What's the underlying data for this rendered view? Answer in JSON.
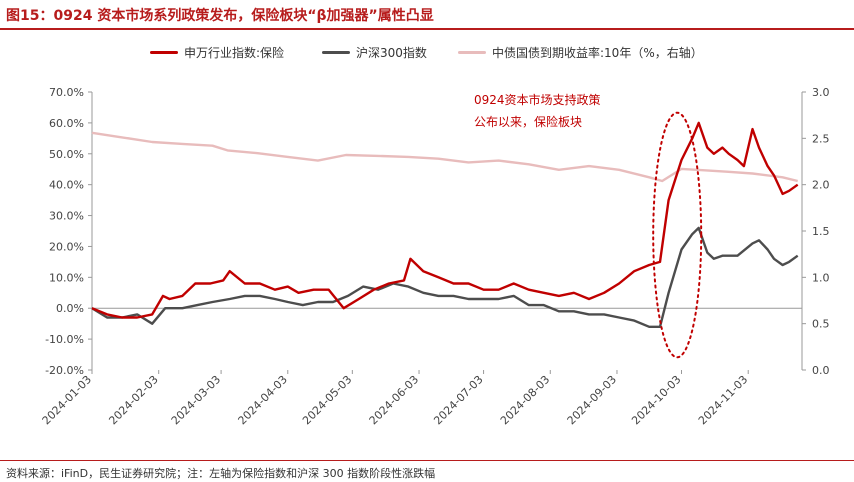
{
  "header": {
    "title": "图15：0924 资本市场系列政策发布，保险板块“β加强器”属性凸显"
  },
  "footer": {
    "source": "资料来源：iFinD，民生证券研究院；注：左轴为保险指数和沪深 300 指数阶段性涨跌幅"
  },
  "colors": {
    "insurance": "#c00000",
    "csi300": "#4d4d4d",
    "bond": "#e8bcbc",
    "accent": "#b71c1c"
  },
  "chart_data": {
    "type": "line",
    "title": "",
    "x_ticks": [
      "2024-01-03",
      "2024-02-03",
      "2024-03-03",
      "2024-04-03",
      "2024-05-03",
      "2024-06-03",
      "2024-07-03",
      "2024-08-03",
      "2024-09-03",
      "2024-10-03",
      "2024-11-03"
    ],
    "ylim_left": [
      -20,
      70
    ],
    "ylim_right": [
      0.0,
      3.0
    ],
    "y_left_ticks": [
      "-20.0%",
      "-10.0%",
      "0.0%",
      "10.0%",
      "20.0%",
      "30.0%",
      "40.0%",
      "50.0%",
      "60.0%",
      "70.0%"
    ],
    "y_right_ticks": [
      "0.0",
      "0.5",
      "1.0",
      "1.5",
      "2.0",
      "2.5",
      "3.0"
    ],
    "legend_position": "top",
    "grid": false,
    "series": [
      {
        "name": "申万行业指数:保险",
        "axis": "left",
        "points": [
          [
            "2024-01-03",
            0
          ],
          [
            "2024-01-10",
            -2
          ],
          [
            "2024-01-17",
            -3
          ],
          [
            "2024-01-24",
            -3
          ],
          [
            "2024-01-31",
            -2
          ],
          [
            "2024-02-05",
            4
          ],
          [
            "2024-02-08",
            3
          ],
          [
            "2024-02-14",
            4
          ],
          [
            "2024-02-20",
            8
          ],
          [
            "2024-02-27",
            8
          ],
          [
            "2024-03-04",
            9
          ],
          [
            "2024-03-07",
            12
          ],
          [
            "2024-03-14",
            8
          ],
          [
            "2024-03-21",
            8
          ],
          [
            "2024-03-28",
            6
          ],
          [
            "2024-04-03",
            7
          ],
          [
            "2024-04-08",
            5
          ],
          [
            "2024-04-15",
            6
          ],
          [
            "2024-04-22",
            6
          ],
          [
            "2024-04-29",
            0
          ],
          [
            "2024-05-06",
            3
          ],
          [
            "2024-05-13",
            6
          ],
          [
            "2024-05-20",
            8
          ],
          [
            "2024-05-27",
            9
          ],
          [
            "2024-05-30",
            16
          ],
          [
            "2024-06-05",
            12
          ],
          [
            "2024-06-12",
            10
          ],
          [
            "2024-06-19",
            8
          ],
          [
            "2024-06-26",
            8
          ],
          [
            "2024-07-03",
            6
          ],
          [
            "2024-07-10",
            6
          ],
          [
            "2024-07-17",
            8
          ],
          [
            "2024-07-24",
            6
          ],
          [
            "2024-07-31",
            5
          ],
          [
            "2024-08-07",
            4
          ],
          [
            "2024-08-14",
            5
          ],
          [
            "2024-08-21",
            3
          ],
          [
            "2024-08-28",
            5
          ],
          [
            "2024-09-04",
            8
          ],
          [
            "2024-09-11",
            12
          ],
          [
            "2024-09-18",
            14
          ],
          [
            "2024-09-23",
            15
          ],
          [
            "2024-09-27",
            35
          ],
          [
            "2024-10-03",
            48
          ],
          [
            "2024-10-08",
            55
          ],
          [
            "2024-10-11",
            60
          ],
          [
            "2024-10-15",
            52
          ],
          [
            "2024-10-18",
            50
          ],
          [
            "2024-10-22",
            52
          ],
          [
            "2024-10-25",
            50
          ],
          [
            "2024-10-29",
            48
          ],
          [
            "2024-11-01",
            46
          ],
          [
            "2024-11-05",
            58
          ],
          [
            "2024-11-08",
            52
          ],
          [
            "2024-11-12",
            46
          ],
          [
            "2024-11-15",
            43
          ],
          [
            "2024-11-19",
            37
          ],
          [
            "2024-11-22",
            38
          ],
          [
            "2024-11-26",
            40
          ]
        ]
      },
      {
        "name": "沪深300指数",
        "axis": "left",
        "points": [
          [
            "2024-01-03",
            0
          ],
          [
            "2024-01-10",
            -3
          ],
          [
            "2024-01-17",
            -3
          ],
          [
            "2024-01-24",
            -2
          ],
          [
            "2024-01-31",
            -5
          ],
          [
            "2024-02-06",
            0
          ],
          [
            "2024-02-14",
            0
          ],
          [
            "2024-02-21",
            1
          ],
          [
            "2024-02-28",
            2
          ],
          [
            "2024-03-07",
            3
          ],
          [
            "2024-03-14",
            4
          ],
          [
            "2024-03-21",
            4
          ],
          [
            "2024-03-28",
            3
          ],
          [
            "2024-04-03",
            2
          ],
          [
            "2024-04-10",
            1
          ],
          [
            "2024-04-17",
            2
          ],
          [
            "2024-04-24",
            2
          ],
          [
            "2024-05-01",
            4
          ],
          [
            "2024-05-08",
            7
          ],
          [
            "2024-05-15",
            6
          ],
          [
            "2024-05-22",
            8
          ],
          [
            "2024-05-29",
            7
          ],
          [
            "2024-06-05",
            5
          ],
          [
            "2024-06-12",
            4
          ],
          [
            "2024-06-19",
            4
          ],
          [
            "2024-06-26",
            3
          ],
          [
            "2024-07-03",
            3
          ],
          [
            "2024-07-10",
            3
          ],
          [
            "2024-07-17",
            4
          ],
          [
            "2024-07-24",
            1
          ],
          [
            "2024-07-31",
            1
          ],
          [
            "2024-08-07",
            -1
          ],
          [
            "2024-08-14",
            -1
          ],
          [
            "2024-08-21",
            -2
          ],
          [
            "2024-08-28",
            -2
          ],
          [
            "2024-09-04",
            -3
          ],
          [
            "2024-09-11",
            -4
          ],
          [
            "2024-09-18",
            -6
          ],
          [
            "2024-09-23",
            -6
          ],
          [
            "2024-09-27",
            5
          ],
          [
            "2024-10-03",
            19
          ],
          [
            "2024-10-08",
            24
          ],
          [
            "2024-10-11",
            26
          ],
          [
            "2024-10-15",
            18
          ],
          [
            "2024-10-18",
            16
          ],
          [
            "2024-10-22",
            17
          ],
          [
            "2024-10-29",
            17
          ],
          [
            "2024-11-05",
            21
          ],
          [
            "2024-11-08",
            22
          ],
          [
            "2024-11-12",
            19
          ],
          [
            "2024-11-15",
            16
          ],
          [
            "2024-11-19",
            14
          ],
          [
            "2024-11-22",
            15
          ],
          [
            "2024-11-26",
            17
          ]
        ]
      },
      {
        "name": "中债国债到期收益率:10年（%，右轴）",
        "axis": "right",
        "points": [
          [
            "2024-01-03",
            2.56
          ],
          [
            "2024-01-17",
            2.51
          ],
          [
            "2024-01-31",
            2.46
          ],
          [
            "2024-02-14",
            2.44
          ],
          [
            "2024-02-28",
            2.42
          ],
          [
            "2024-03-06",
            2.37
          ],
          [
            "2024-03-20",
            2.34
          ],
          [
            "2024-04-03",
            2.3
          ],
          [
            "2024-04-17",
            2.26
          ],
          [
            "2024-04-30",
            2.32
          ],
          [
            "2024-05-15",
            2.31
          ],
          [
            "2024-05-29",
            2.3
          ],
          [
            "2024-06-12",
            2.28
          ],
          [
            "2024-06-26",
            2.24
          ],
          [
            "2024-07-10",
            2.26
          ],
          [
            "2024-07-24",
            2.22
          ],
          [
            "2024-08-07",
            2.16
          ],
          [
            "2024-08-21",
            2.2
          ],
          [
            "2024-09-04",
            2.16
          ],
          [
            "2024-09-18",
            2.08
          ],
          [
            "2024-09-24",
            2.04
          ],
          [
            "2024-10-03",
            2.17
          ],
          [
            "2024-10-10",
            2.16
          ],
          [
            "2024-10-24",
            2.14
          ],
          [
            "2024-11-05",
            2.12
          ],
          [
            "2024-11-19",
            2.08
          ],
          [
            "2024-11-26",
            2.04
          ]
        ]
      }
    ],
    "annotation": {
      "line1": "0924资本市场支持政策",
      "line2": "公布以来，保险板块"
    }
  }
}
